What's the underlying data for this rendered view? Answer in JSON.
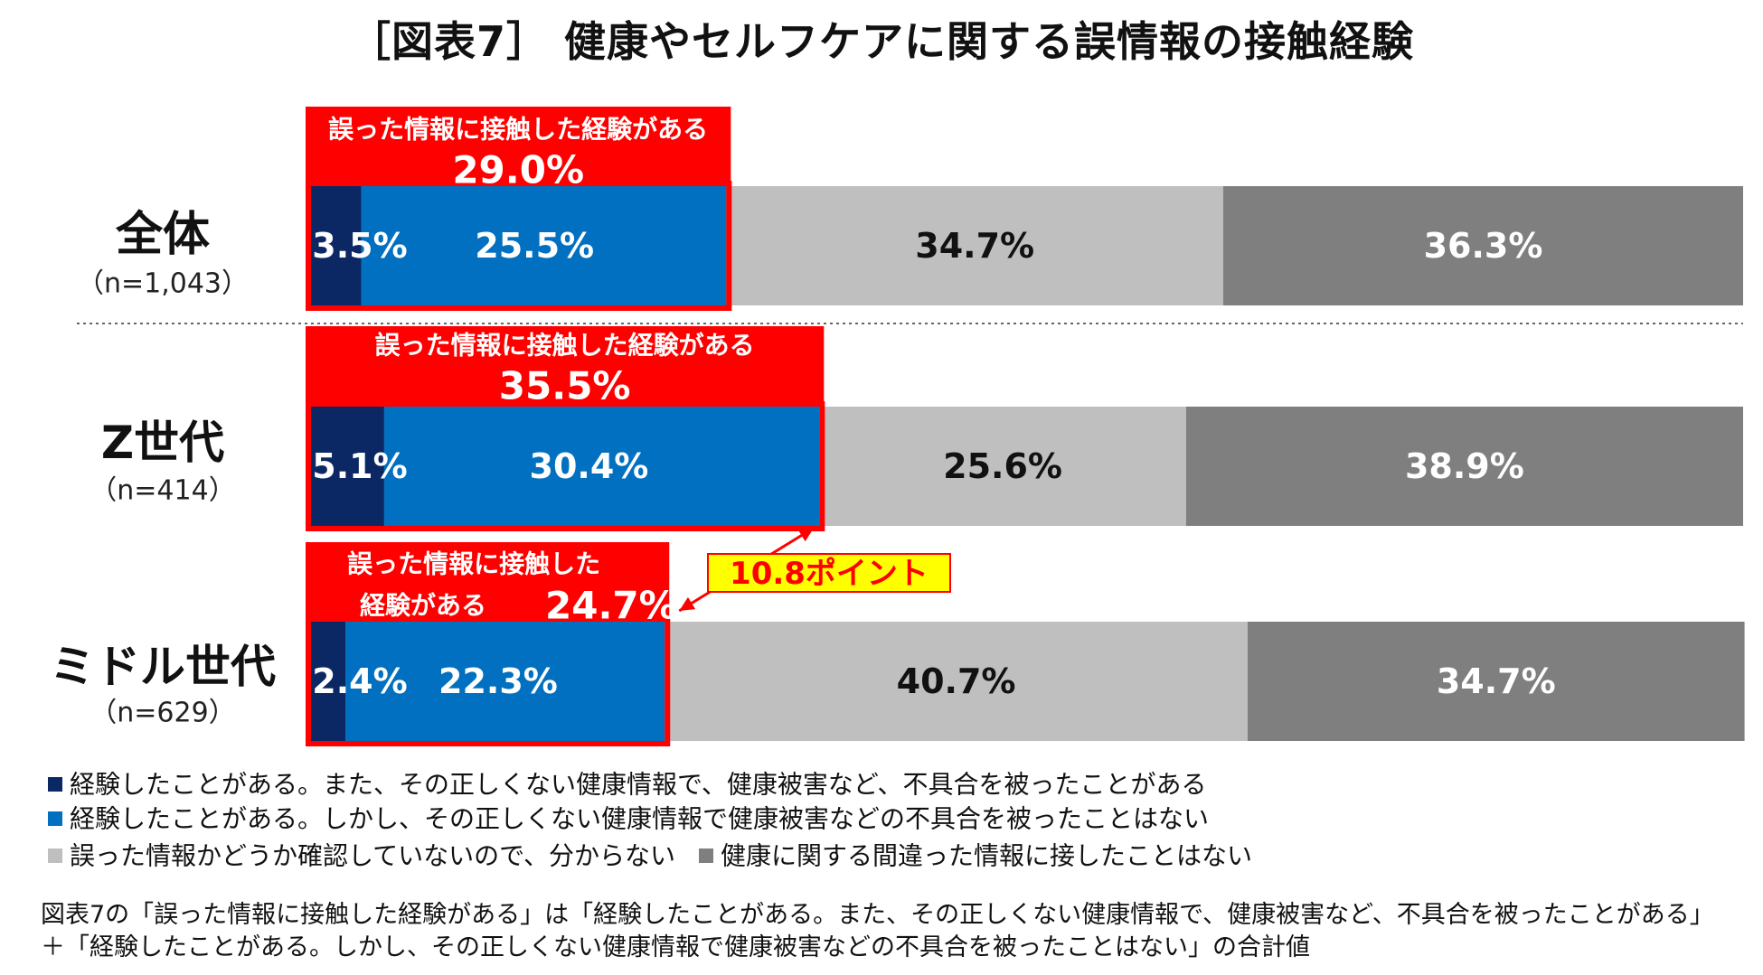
{
  "title": "［図表7］ 健康やセルフケアに関する誤情報の接触経験",
  "colors": {
    "dark_navy": "#0b2865",
    "blue": "#0270c0",
    "light_gray": "#bfbfbf",
    "dark_gray": "#7f7f7f",
    "red": "#ff0000",
    "yellow": "#ffff00"
  },
  "chart_data": {
    "type": "bar",
    "orientation": "horizontal",
    "stacked": true,
    "categories": [
      "全体",
      "Z世代",
      "ミドル世代"
    ],
    "sample_sizes": [
      "（n=1,043）",
      "（n=414）",
      "（n=629）"
    ],
    "series": [
      {
        "name": "経験したことがある。また、その正しくない健康情報で、健康被害など、不具合を被ったことがある",
        "color": "#0b2865",
        "values": [
          3.5,
          5.1,
          2.4
        ],
        "labels": [
          "3.5%",
          "5.1%",
          "2.4%"
        ]
      },
      {
        "name": "経験したことがある。しかし、その正しくない健康情報で健康被害などの不具合を被ったことはない",
        "color": "#0270c0",
        "values": [
          25.5,
          30.4,
          22.3
        ],
        "labels": [
          "25.5%",
          "30.4%",
          "22.3%"
        ]
      },
      {
        "name": "誤った情報かどうか確認していないので、分からない",
        "color": "#bfbfbf",
        "values": [
          34.7,
          25.6,
          40.7
        ],
        "labels": [
          "34.7%",
          "25.6%",
          "40.7%"
        ]
      },
      {
        "name": "健康に関する間違った情報に接したことはない",
        "color": "#7f7f7f",
        "values": [
          36.3,
          38.9,
          34.7
        ],
        "labels": [
          "36.3%",
          "38.9%",
          "34.7%"
        ]
      }
    ],
    "callouts": [
      {
        "lines": [
          "誤った情報に接触した経験がある",
          "29.0%"
        ],
        "value": 29.0
      },
      {
        "lines": [
          "誤った情報に接触した経験がある",
          "35.5%"
        ],
        "value": 35.5
      },
      {
        "lines": [
          "誤った情報に接触した",
          "経験がある",
          "24.7%"
        ],
        "value": 24.7
      }
    ],
    "difference_label": "10.8ポイント",
    "xlim": [
      0,
      100
    ]
  },
  "notes": [
    "図表7の「誤った情報に接触した経験がある」は「経験したことがある。また、その正しくない健康情報で、健康被害など、不具合を被ったことがある」",
    "＋「経験したことがある。しかし、その正しくない健康情報で健康被害などの不具合を被ったことはない」の合計値"
  ]
}
